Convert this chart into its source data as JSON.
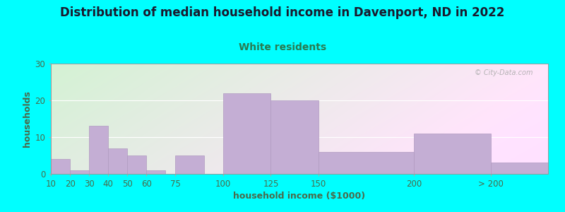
{
  "title": "Distribution of median household income in Davenport, ND in 2022",
  "subtitle": "White residents",
  "xlabel": "household income ($1000)",
  "ylabel": "households",
  "background_color": "#00FFFF",
  "bar_color": "#c4aed4",
  "bar_edge_color": "#b09ac0",
  "title_color": "#1a1a2e",
  "subtitle_color": "#2a7a50",
  "axis_label_color": "#4a6a4a",
  "tick_label_color": "#4a6a4a",
  "categories": [
    "10",
    "20",
    "30",
    "40",
    "50",
    "60",
    "75",
    "100",
    "125",
    "150",
    "200",
    "> 200"
  ],
  "values": [
    4,
    1,
    13,
    7,
    5,
    1,
    5,
    22,
    20,
    6,
    11,
    3
  ],
  "bar_left_edges": [
    10,
    20,
    30,
    40,
    50,
    60,
    75,
    100,
    125,
    150,
    200,
    240
  ],
  "bar_widths": [
    10,
    10,
    10,
    10,
    10,
    10,
    15,
    25,
    25,
    50,
    40,
    30
  ],
  "xtick_positions": [
    10,
    20,
    30,
    40,
    50,
    60,
    75,
    100,
    125,
    150,
    200,
    240
  ],
  "xlim": [
    10,
    270
  ],
  "ylim": [
    0,
    30
  ],
  "yticks": [
    0,
    10,
    20,
    30
  ],
  "title_fontsize": 12,
  "subtitle_fontsize": 10,
  "axis_label_fontsize": 9,
  "tick_fontsize": 8.5
}
